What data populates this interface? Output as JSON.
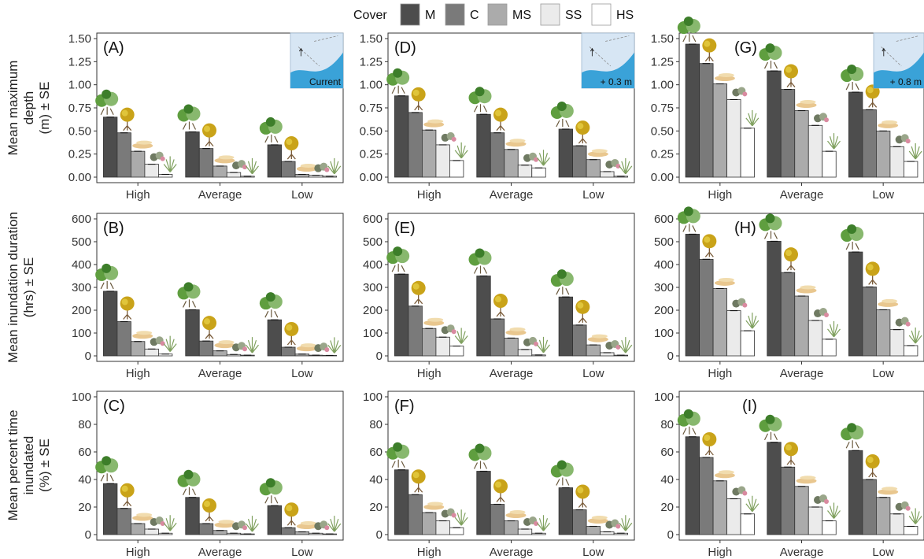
{
  "legend": {
    "title": "Cover",
    "items": [
      {
        "key": "M",
        "color": "#4d4d4d"
      },
      {
        "key": "C",
        "color": "#7a7a7a"
      },
      {
        "key": "MS",
        "color": "#ababab"
      },
      {
        "key": "SS",
        "color": "#ebebeb"
      },
      {
        "key": "HS",
        "color": "#ffffff"
      }
    ]
  },
  "row_labels": [
    [
      "Mean maximum",
      "depth",
      "(m) ± SE"
    ],
    [
      "Mean inundation duration",
      "(hrs) ± SE"
    ],
    [
      "Mean percent time",
      "inundated",
      "(%) ± SE"
    ]
  ],
  "scenarios": [
    "Current",
    "+ 0.3 m",
    "+ 0.8 m"
  ],
  "icons": {
    "M": "mangrove-icon",
    "C": "tree-icon",
    "MS": "saltmarsh-patch-icon",
    "SS": "shrub-icon",
    "HS": "grass-icon"
  },
  "chart_data": [
    {
      "type": "bar",
      "panel": "(A)",
      "row": 0,
      "col": 0,
      "scenario": "Current",
      "categories": [
        "High",
        "Average",
        "Low"
      ],
      "ylim": [
        0,
        1.5
      ],
      "yticks": [
        "0.00",
        "0.25",
        "0.50",
        "0.75",
        "1.00",
        "1.25",
        "1.50"
      ],
      "ytick_values": [
        0,
        0.25,
        0.5,
        0.75,
        1.0,
        1.25,
        1.5
      ],
      "series": [
        {
          "name": "M",
          "values": [
            0.65,
            0.49,
            0.35
          ]
        },
        {
          "name": "C",
          "values": [
            0.48,
            0.31,
            0.17
          ]
        },
        {
          "name": "MS",
          "values": [
            0.28,
            0.12,
            0.03
          ]
        },
        {
          "name": "SS",
          "values": [
            0.14,
            0.05,
            0.02
          ]
        },
        {
          "name": "HS",
          "values": [
            0.03,
            0.01,
            0.01
          ]
        }
      ]
    },
    {
      "type": "bar",
      "panel": "(D)",
      "row": 0,
      "col": 1,
      "scenario": "+ 0.3 m",
      "categories": [
        "High",
        "Average",
        "Low"
      ],
      "ylim": [
        0,
        1.5
      ],
      "yticks": [
        "0.00",
        "0.25",
        "0.50",
        "0.75",
        "1.00",
        "1.25",
        "1.50"
      ],
      "ytick_values": [
        0,
        0.25,
        0.5,
        0.75,
        1.0,
        1.25,
        1.5
      ],
      "series": [
        {
          "name": "M",
          "values": [
            0.88,
            0.68,
            0.52
          ]
        },
        {
          "name": "C",
          "values": [
            0.7,
            0.48,
            0.34
          ]
        },
        {
          "name": "MS",
          "values": [
            0.51,
            0.3,
            0.19
          ]
        },
        {
          "name": "SS",
          "values": [
            0.35,
            0.13,
            0.06
          ]
        },
        {
          "name": "HS",
          "values": [
            0.18,
            0.1,
            0.01
          ]
        }
      ]
    },
    {
      "type": "bar",
      "panel": "(G)",
      "row": 0,
      "col": 2,
      "scenario": "+ 0.8 m",
      "categories": [
        "High",
        "Average",
        "Low"
      ],
      "ylim": [
        0,
        1.5
      ],
      "yticks": [
        "0.00",
        "0.25",
        "0.50",
        "0.75",
        "1.00",
        "1.25",
        "1.50"
      ],
      "ytick_values": [
        0,
        0.25,
        0.5,
        0.75,
        1.0,
        1.25,
        1.5
      ],
      "series": [
        {
          "name": "M",
          "values": [
            1.44,
            1.15,
            0.92
          ]
        },
        {
          "name": "C",
          "values": [
            1.23,
            0.95,
            0.73
          ]
        },
        {
          "name": "MS",
          "values": [
            1.01,
            0.72,
            0.5
          ]
        },
        {
          "name": "SS",
          "values": [
            0.84,
            0.56,
            0.33
          ]
        },
        {
          "name": "HS",
          "values": [
            0.53,
            0.28,
            0.17
          ]
        }
      ]
    },
    {
      "type": "bar",
      "panel": "(B)",
      "row": 1,
      "col": 0,
      "scenario": "Current",
      "categories": [
        "High",
        "Average",
        "Low"
      ],
      "ylim": [
        0,
        600
      ],
      "yticks": [
        "0",
        "100",
        "200",
        "300",
        "400",
        "500",
        "600"
      ],
      "ytick_values": [
        0,
        100,
        200,
        300,
        400,
        500,
        600
      ],
      "series": [
        {
          "name": "M",
          "values": [
            283,
            202,
            158
          ]
        },
        {
          "name": "C",
          "values": [
            150,
            65,
            38
          ]
        },
        {
          "name": "MS",
          "values": [
            63,
            22,
            8
          ]
        },
        {
          "name": "SS",
          "values": [
            30,
            6,
            3
          ]
        },
        {
          "name": "HS",
          "values": [
            8,
            3,
            2
          ]
        }
      ]
    },
    {
      "type": "bar",
      "panel": "(E)",
      "row": 1,
      "col": 1,
      "scenario": "+ 0.3 m",
      "categories": [
        "High",
        "Average",
        "Low"
      ],
      "ylim": [
        0,
        600
      ],
      "yticks": [
        "0",
        "100",
        "200",
        "300",
        "400",
        "500",
        "600"
      ],
      "ytick_values": [
        0,
        100,
        200,
        300,
        400,
        500,
        600
      ],
      "series": [
        {
          "name": "M",
          "values": [
            358,
            350,
            258
          ]
        },
        {
          "name": "C",
          "values": [
            218,
            162,
            135
          ]
        },
        {
          "name": "MS",
          "values": [
            120,
            78,
            48
          ]
        },
        {
          "name": "SS",
          "values": [
            82,
            28,
            14
          ]
        },
        {
          "name": "HS",
          "values": [
            43,
            4,
            3
          ]
        }
      ]
    },
    {
      "type": "bar",
      "panel": "(H)",
      "row": 1,
      "col": 2,
      "scenario": "+ 0.8 m",
      "categories": [
        "High",
        "Average",
        "Low"
      ],
      "ylim": [
        0,
        600
      ],
      "yticks": [
        "0",
        "100",
        "200",
        "300",
        "400",
        "500",
        "600"
      ],
      "ytick_values": [
        0,
        100,
        200,
        300,
        400,
        500,
        600
      ],
      "series": [
        {
          "name": "M",
          "values": [
            533,
            502,
            455
          ]
        },
        {
          "name": "C",
          "values": [
            423,
            365,
            302
          ]
        },
        {
          "name": "MS",
          "values": [
            295,
            262,
            202
          ]
        },
        {
          "name": "SS",
          "values": [
            198,
            155,
            115
          ]
        },
        {
          "name": "HS",
          "values": [
            110,
            73,
            45
          ]
        }
      ]
    },
    {
      "type": "bar",
      "panel": "(C)",
      "row": 2,
      "col": 0,
      "scenario": "Current",
      "categories": [
        "High",
        "Average",
        "Low"
      ],
      "ylim": [
        0,
        100
      ],
      "yticks": [
        "0",
        "20",
        "40",
        "60",
        "80",
        "100"
      ],
      "ytick_values": [
        0,
        20,
        40,
        60,
        80,
        100
      ],
      "series": [
        {
          "name": "M",
          "values": [
            37,
            27,
            21
          ]
        },
        {
          "name": "C",
          "values": [
            19,
            8,
            5
          ]
        },
        {
          "name": "MS",
          "values": [
            8,
            3,
            2
          ]
        },
        {
          "name": "SS",
          "values": [
            4,
            1,
            1
          ]
        },
        {
          "name": "HS",
          "values": [
            1,
            0.5,
            0.5
          ]
        }
      ]
    },
    {
      "type": "bar",
      "panel": "(F)",
      "row": 2,
      "col": 1,
      "scenario": "+ 0.3 m",
      "categories": [
        "High",
        "Average",
        "Low"
      ],
      "ylim": [
        0,
        100
      ],
      "yticks": [
        "0",
        "20",
        "40",
        "60",
        "80",
        "100"
      ],
      "ytick_values": [
        0,
        20,
        40,
        60,
        80,
        100
      ],
      "series": [
        {
          "name": "M",
          "values": [
            47,
            46,
            34
          ]
        },
        {
          "name": "C",
          "values": [
            29,
            22,
            18
          ]
        },
        {
          "name": "MS",
          "values": [
            16,
            10,
            6
          ]
        },
        {
          "name": "SS",
          "values": [
            10,
            4,
            2
          ]
        },
        {
          "name": "HS",
          "values": [
            5,
            1,
            1
          ]
        }
      ]
    },
    {
      "type": "bar",
      "panel": "(I)",
      "row": 2,
      "col": 2,
      "scenario": "+ 0.8 m",
      "categories": [
        "High",
        "Average",
        "Low"
      ],
      "ylim": [
        0,
        100
      ],
      "yticks": [
        "0",
        "20",
        "40",
        "60",
        "80",
        "100"
      ],
      "ytick_values": [
        0,
        20,
        40,
        60,
        80,
        100
      ],
      "series": [
        {
          "name": "M",
          "values": [
            71,
            67,
            61
          ]
        },
        {
          "name": "C",
          "values": [
            56,
            49,
            40
          ]
        },
        {
          "name": "MS",
          "values": [
            39,
            35,
            27
          ]
        },
        {
          "name": "SS",
          "values": [
            26,
            20,
            15
          ]
        },
        {
          "name": "HS",
          "values": [
            15,
            10,
            6
          ]
        }
      ]
    }
  ]
}
